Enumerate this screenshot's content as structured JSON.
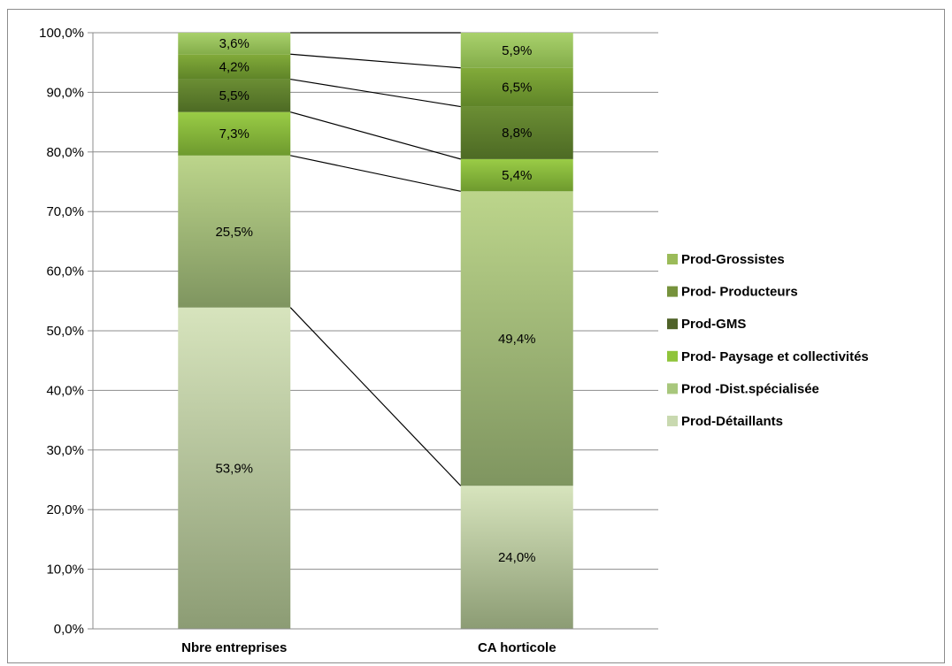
{
  "chart_data": {
    "type": "bar",
    "stacked": true,
    "percent": true,
    "categories": [
      "Nbre entreprises",
      "CA horticole"
    ],
    "ylim": [
      0,
      100
    ],
    "yticks": [
      "0,0%",
      "10,0%",
      "20,0%",
      "30,0%",
      "40,0%",
      "50,0%",
      "60,0%",
      "70,0%",
      "80,0%",
      "90,0%",
      "100,0%"
    ],
    "grid": true,
    "legend_position": "right",
    "series_lines": true,
    "series": [
      {
        "name": "Prod-Détaillants",
        "values": [
          53.9,
          24.0
        ],
        "labels": [
          "53,9%",
          "24,0%"
        ],
        "color_top": "#d7e4bd",
        "color_bottom": "#8c9c74"
      },
      {
        "name": "Prod -Dist.spécialisée",
        "values": [
          25.5,
          49.4
        ],
        "labels": [
          "25,5%",
          "49,4%"
        ],
        "color_top": "#bcd58b",
        "color_bottom": "#7f9560"
      },
      {
        "name": "Prod- Paysage et collectivités",
        "values": [
          7.3,
          5.4
        ],
        "labels": [
          "7,3%",
          "5,4%"
        ],
        "color_top": "#9acc46",
        "color_bottom": "#6e9a2e"
      },
      {
        "name": "Prod-GMS",
        "values": [
          5.5,
          8.8
        ],
        "labels": [
          "5,5%",
          "8,8%"
        ],
        "color_top": "#6b8e34",
        "color_bottom": "#4d6a24"
      },
      {
        "name": "Prod- Producteurs",
        "values": [
          4.2,
          6.5
        ],
        "labels": [
          "4,2%",
          "6,5%"
        ],
        "color_top": "#82ab3a",
        "color_bottom": "#5f8428"
      },
      {
        "name": "Prod-Grossistes",
        "values": [
          3.6,
          5.9
        ],
        "labels": [
          "3,6%",
          "5,9%"
        ],
        "color_top": "#a9d16c",
        "color_bottom": "#84ad4a"
      }
    ],
    "legend_colors": [
      "#9bbb59",
      "#76923c",
      "#4f6228",
      "#8fc43a",
      "#a8c77c",
      "#c9d9b0"
    ]
  }
}
